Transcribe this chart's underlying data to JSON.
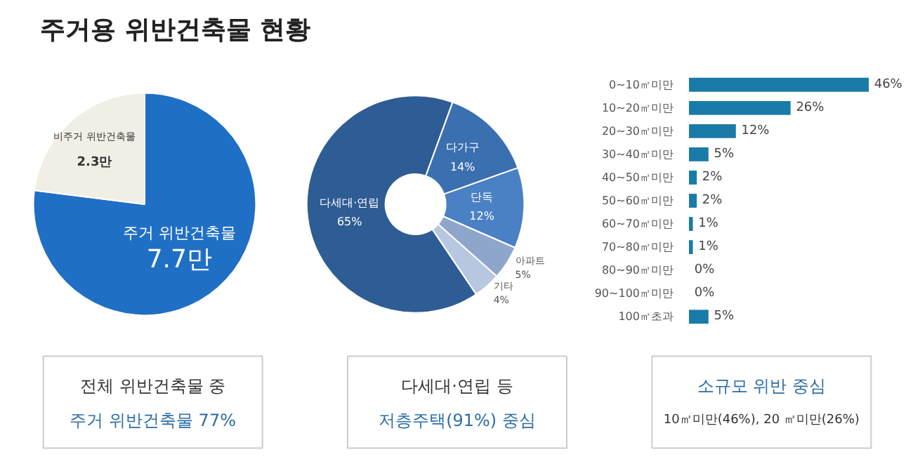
{
  "chart_data": [
    {
      "type": "pie",
      "title": "주거용 위반건축물 현황",
      "categories": [
        "주거 위반건축물",
        "비주거 위반건축물"
      ],
      "values": [
        7.7,
        2.3
      ],
      "colors": [
        "#1f6fc5",
        "#f1eee6"
      ],
      "value_labels": [
        "7.7만",
        "2.3만"
      ]
    },
    {
      "type": "donut",
      "categories": [
        "다세대·연립",
        "다가구",
        "단독",
        "아파트",
        "기타"
      ],
      "values": [
        65,
        14,
        12,
        5,
        4
      ],
      "colors": [
        "#2e5c94",
        "#3a6fb0",
        "#4a80c4",
        "#8fa6cc",
        "#b8c7e0"
      ],
      "value_labels": [
        "65%",
        "14%",
        "12%",
        "5%",
        "4%"
      ]
    },
    {
      "type": "bar",
      "orientation": "horizontal",
      "categories": [
        "0~10㎡미만",
        "10~20㎡미만",
        "20~30㎡미만",
        "30~40㎡미만",
        "40~50㎡미만",
        "50~60㎡미만",
        "60~70㎡미만",
        "70~80㎡미만",
        "80~90㎡미만",
        "90~100㎡미만",
        "100㎡초과"
      ],
      "values": [
        46,
        26,
        12,
        5,
        2,
        2,
        1,
        1,
        0,
        0,
        5
      ],
      "color": "#1a7ba8",
      "value_labels": [
        "46%",
        "26%",
        "12%",
        "5%",
        "2%",
        "2%",
        "1%",
        "1%",
        "0%",
        "0%",
        "5%"
      ]
    },
    {
      "type": "other",
      "annotations": [
        "전체 위반건축물 중",
        "주거 위반건축물 77%",
        "다세대·연립 등",
        "저층주택(91%) 중심",
        "소규모 위반 중심",
        "10㎡미만(46%), 20 ㎡미만(26%)"
      ]
    }
  ]
}
